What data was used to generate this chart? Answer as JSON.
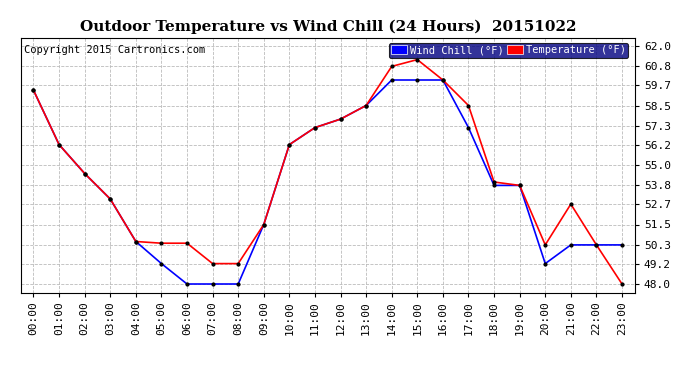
{
  "title": "Outdoor Temperature vs Wind Chill (24 Hours)  20151022",
  "copyright": "Copyright 2015 Cartronics.com",
  "legend_labels": [
    "Wind Chill (°F)",
    "Temperature (°F)"
  ],
  "legend_colors": [
    "#0000ff",
    "#ff0000"
  ],
  "legend_bg": "#000080",
  "background_color": "#ffffff",
  "plot_bg_color": "#ffffff",
  "grid_color": "#bbbbbb",
  "hours": [
    0,
    1,
    2,
    3,
    4,
    5,
    6,
    7,
    8,
    9,
    10,
    11,
    12,
    13,
    14,
    15,
    16,
    17,
    18,
    19,
    20,
    21,
    22,
    23
  ],
  "temperature": [
    59.4,
    56.2,
    54.5,
    53.0,
    50.5,
    50.4,
    50.4,
    49.2,
    49.2,
    51.5,
    56.2,
    57.2,
    57.7,
    58.5,
    60.8,
    61.2,
    60.0,
    58.5,
    54.0,
    53.8,
    50.3,
    52.7,
    50.3,
    48.0
  ],
  "wind_chill": [
    59.4,
    56.2,
    54.5,
    53.0,
    50.5,
    49.2,
    48.0,
    48.0,
    48.0,
    51.5,
    56.2,
    57.2,
    57.7,
    58.5,
    60.0,
    60.0,
    60.0,
    57.2,
    53.8,
    53.8,
    49.2,
    50.3,
    50.3,
    50.3
  ],
  "yticks": [
    48.0,
    49.2,
    50.3,
    51.5,
    52.7,
    53.8,
    55.0,
    56.2,
    57.3,
    58.5,
    59.7,
    60.8,
    62.0
  ],
  "ylim": [
    47.5,
    62.5
  ],
  "temp_color": "#ff0000",
  "wind_color": "#0000ff",
  "marker_color": "#000000",
  "title_fontsize": 11,
  "copyright_fontsize": 7.5,
  "tick_fontsize": 8
}
